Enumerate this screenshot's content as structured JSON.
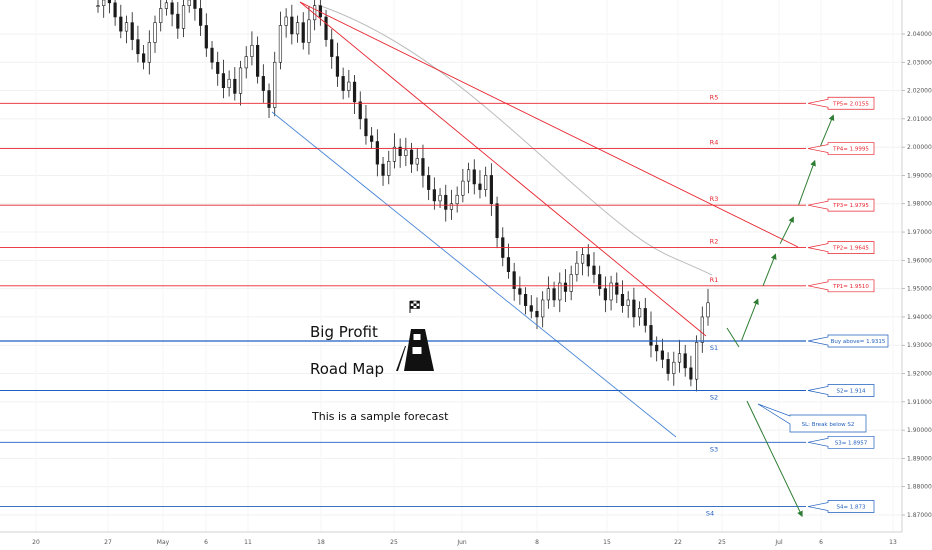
{
  "title_lines": [
    "Big Profit",
    "Road Map"
  ],
  "subtitle": "This is a sample forecast",
  "colors": {
    "resistance": "#e8242f",
    "support": "#1f5fbf",
    "trend_support": "#4a86d6",
    "arrow": "#2e7d32",
    "candle_up": "#1a1a1a",
    "candle_down": "#1a1a1a",
    "ma": "#bdbdbd"
  },
  "icons": {
    "flag": "checkered-flag-icon",
    "road": "road-icon"
  },
  "chart_data": {
    "type": "line",
    "y_axis": {
      "ylim": [
        1.864,
        2.052
      ],
      "ticks": [
        "2.04000",
        "2.03000",
        "2.02000",
        "2.01000",
        "2.00000",
        "1.99000",
        "1.98000",
        "1.97000",
        "1.96000",
        "1.95000",
        "1.94000",
        "1.93000",
        "1.92000",
        "1.91000",
        "1.90000",
        "1.89000",
        "1.88000",
        "1.87000"
      ]
    },
    "x_axis": {
      "labels": [
        "20",
        "27",
        "May",
        "6",
        "11",
        "18",
        "25",
        "Jun",
        "8",
        "15",
        "22",
        "25",
        "Jul",
        "6",
        "13"
      ]
    },
    "resistance_levels": [
      {
        "label": "R5",
        "value": 2.0155,
        "callout": "TP5= 2.0155"
      },
      {
        "label": "R4",
        "value": 1.9995,
        "callout": "TP4= 1.9995"
      },
      {
        "label": "R3",
        "value": 1.9795,
        "callout": "TP3= 1.9795"
      },
      {
        "label": "R2",
        "value": 1.9645,
        "callout": "TP2= 1.9645"
      },
      {
        "label": "R1",
        "value": 1.951,
        "callout": "TP1= 1.9510"
      }
    ],
    "support_levels": [
      {
        "label": "S1",
        "value": 1.9315,
        "callout": "Buy above= 1.9315"
      },
      {
        "label": "S2",
        "value": 1.914,
        "callout": "S2= 1.914"
      },
      {
        "label": "S3",
        "value": 1.8957,
        "callout": "S3= 1.8957"
      },
      {
        "label": "S4",
        "value": 1.873,
        "callout": "S4= 1.873"
      }
    ],
    "stop_loss_note": "SL: Break below S2",
    "candles": [
      2.05,
      2.052,
      2.051,
      2.046,
      2.041,
      2.044,
      2.038,
      2.033,
      2.03,
      2.037,
      2.044,
      2.049,
      2.051,
      2.047,
      2.042,
      2.05,
      2.052,
      2.049,
      2.043,
      2.035,
      2.03,
      2.026,
      2.021,
      2.024,
      2.019,
      2.028,
      2.032,
      2.036,
      2.025,
      2.02,
      2.014,
      2.03,
      2.043,
      2.046,
      2.04,
      2.044,
      2.037,
      2.045,
      2.05,
      2.046,
      2.038,
      2.032,
      2.025,
      2.02,
      2.023,
      2.016,
      2.01,
      2.004,
      2.002,
      1.994,
      1.99,
      1.995,
      2.0,
      1.997,
      1.999,
      1.994,
      1.996,
      1.99,
      1.985,
      1.981,
      1.983,
      1.978,
      1.98,
      1.983,
      1.988,
      1.992,
      1.987,
      1.985,
      1.99,
      1.98,
      1.968,
      1.961,
      1.956,
      1.95,
      1.948,
      1.944,
      1.942,
      1.94,
      1.946,
      1.95,
      1.946,
      1.952,
      1.949,
      1.955,
      1.959,
      1.962,
      1.958,
      1.955,
      1.95,
      1.946,
      1.952,
      1.948,
      1.944,
      1.946,
      1.94,
      1.943,
      1.937,
      1.93,
      1.928,
      1.925,
      1.92,
      1.924,
      1.927,
      1.922,
      1.918,
      1.931,
      1.94,
      1.945
    ]
  }
}
